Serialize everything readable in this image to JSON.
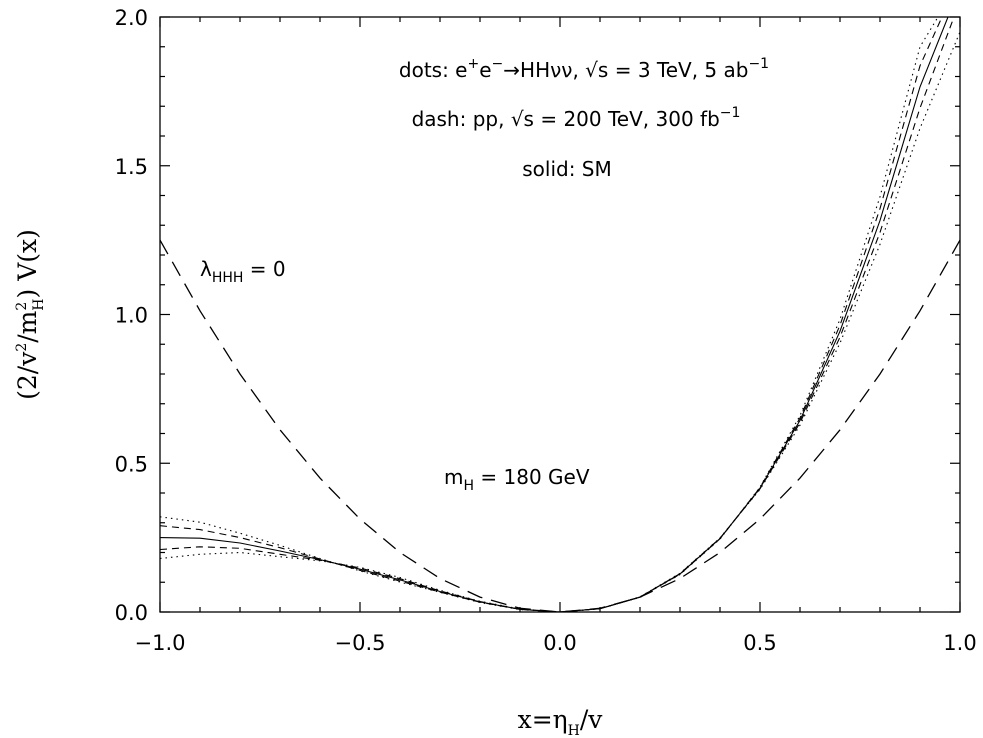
{
  "chart_data": {
    "type": "line",
    "title": "",
    "xlabel": {
      "main": "x=",
      "eta": "η",
      "sub": "H",
      "tail": "/v"
    },
    "ylabel": {
      "p1": "(2/v",
      "p2": "2",
      "p3": "/m",
      "p4": "2",
      "p5": "H",
      "p6": ")  V(x)"
    },
    "xlim": [
      -1.0,
      1.0
    ],
    "ylim": [
      0.0,
      2.0
    ],
    "x_ticks": [
      {
        "value": -1.0,
        "label": "−1.0"
      },
      {
        "value": -0.5,
        "label": "−0.5"
      },
      {
        "value": 0.0,
        "label": "0.0"
      },
      {
        "value": 0.5,
        "label": "0.5"
      },
      {
        "value": 1.0,
        "label": "1.0"
      }
    ],
    "y_ticks": [
      {
        "value": 0.0,
        "label": "0.0"
      },
      {
        "value": 0.5,
        "label": "0.5"
      },
      {
        "value": 1.0,
        "label": "1.0"
      },
      {
        "value": 1.5,
        "label": "1.5"
      },
      {
        "value": 2.0,
        "label": "2.0"
      }
    ],
    "grid": false,
    "legend": {
      "line1": {
        "prefix": "dots: e",
        "sup1": "+",
        "mid1": "e",
        "sup2": "−",
        "arrow": "→HHνν, ",
        "sqrt": "√s",
        "tail": " = 3 TeV, 5 ab",
        "sup3": "−1"
      },
      "line2": {
        "prefix": "dash: pp, ",
        "sqrt": "√s",
        "tail": " = 200 TeV, 300 fb",
        "sup": "−1"
      },
      "line3": {
        "text": "solid: SM"
      }
    },
    "annotations": [
      {
        "id": "lambda",
        "main": "λ",
        "sub": "HHH",
        "tail": " = 0",
        "x": -0.9,
        "y": 1.13
      },
      {
        "id": "mass",
        "main": "m",
        "sub": "H",
        "tail": " = 180 GeV",
        "x": -0.29,
        "y": 0.43
      }
    ],
    "series": [
      {
        "style": "solid",
        "x": [
          -1.0,
          -0.9,
          -0.8,
          -0.7,
          -0.6,
          -0.5,
          -0.4,
          -0.3,
          -0.2,
          -0.1,
          0.0,
          0.1,
          0.2,
          0.3,
          0.4,
          0.5,
          0.6,
          0.7,
          0.8,
          0.9,
          0.97
        ],
        "y": [
          0.25,
          0.248,
          0.232,
          0.205,
          0.176,
          0.144,
          0.108,
          0.069,
          0.034,
          0.009,
          0.0,
          0.011,
          0.05,
          0.128,
          0.247,
          0.416,
          0.644,
          0.944,
          1.316,
          1.765,
          2.0
        ]
      },
      {
        "style": "dash",
        "x": [
          -1.0,
          -0.9,
          -0.8,
          -0.7,
          -0.6,
          -0.5,
          -0.4,
          -0.3,
          -0.2,
          -0.1,
          0.0,
          0.1,
          0.2,
          0.3,
          0.4,
          0.5,
          0.6,
          0.7,
          0.8,
          0.9,
          0.955
        ],
        "y": [
          0.29,
          0.277,
          0.25,
          0.216,
          0.178,
          0.14,
          0.104,
          0.067,
          0.033,
          0.009,
          0.0,
          0.011,
          0.05,
          0.127,
          0.246,
          0.418,
          0.652,
          0.964,
          1.356,
          1.836,
          2.0
        ]
      },
      {
        "style": "dash",
        "x": [
          -1.0,
          -0.9,
          -0.8,
          -0.7,
          -0.6,
          -0.5,
          -0.4,
          -0.3,
          -0.2,
          -0.1,
          0.0,
          0.1,
          0.2,
          0.3,
          0.4,
          0.5,
          0.6,
          0.7,
          0.8,
          0.9,
          0.985
        ],
        "y": [
          0.21,
          0.219,
          0.214,
          0.194,
          0.174,
          0.148,
          0.112,
          0.071,
          0.035,
          0.009,
          0.0,
          0.011,
          0.05,
          0.129,
          0.248,
          0.414,
          0.636,
          0.924,
          1.276,
          1.694,
          2.0
        ]
      },
      {
        "style": "dot",
        "x": [
          -1.0,
          -0.9,
          -0.8,
          -0.7,
          -0.6,
          -0.5,
          -0.4,
          -0.3,
          -0.2,
          -0.1,
          0.0,
          0.1,
          0.2,
          0.3,
          0.4,
          0.5,
          0.6,
          0.7,
          0.8,
          0.9,
          0.945
        ],
        "y": [
          0.32,
          0.302,
          0.265,
          0.224,
          0.18,
          0.138,
          0.101,
          0.066,
          0.032,
          0.008,
          0.0,
          0.011,
          0.049,
          0.126,
          0.245,
          0.42,
          0.66,
          0.984,
          1.396,
          1.9,
          2.0
        ]
      },
      {
        "style": "dot",
        "x": [
          -1.0,
          -0.9,
          -0.8,
          -0.7,
          -0.6,
          -0.5,
          -0.4,
          -0.3,
          -0.2,
          -0.1,
          0.0,
          0.1,
          0.2,
          0.3,
          0.4,
          0.5,
          0.6,
          0.7,
          0.8,
          0.9,
          1.0
        ],
        "y": [
          0.18,
          0.194,
          0.2,
          0.186,
          0.172,
          0.15,
          0.116,
          0.073,
          0.036,
          0.01,
          0.0,
          0.011,
          0.051,
          0.13,
          0.249,
          0.412,
          0.628,
          0.904,
          1.236,
          1.626,
          1.95
        ]
      },
      {
        "style": "longdash",
        "x": [
          -1.0,
          -0.9,
          -0.8,
          -0.7,
          -0.6,
          -0.5,
          -0.4,
          -0.3,
          -0.2,
          -0.1,
          0.0,
          0.1,
          0.2,
          0.3,
          0.4,
          0.5,
          0.6,
          0.7,
          0.8,
          0.9,
          1.0
        ],
        "y": [
          1.25,
          1.0125,
          0.8,
          0.6125,
          0.45,
          0.3125,
          0.2,
          0.1125,
          0.05,
          0.0125,
          0.0,
          0.0125,
          0.05,
          0.1125,
          0.2,
          0.3125,
          0.45,
          0.6125,
          0.8,
          1.0125,
          1.25
        ]
      }
    ]
  }
}
